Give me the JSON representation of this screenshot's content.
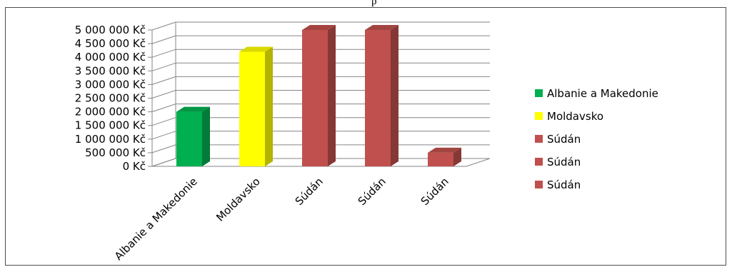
{
  "top_fragment_text": "p",
  "chart_data": {
    "type": "bar",
    "style": "3d-column",
    "categories": [
      "Albanie a Makedonie",
      "Moldavsko",
      "Súdán",
      "Súdán",
      "Súdán"
    ],
    "values": [
      2000000,
      4200000,
      5000000,
      5000000,
      500000
    ],
    "colors": [
      "#00b050",
      "#ffff00",
      "#c0504d",
      "#c0504d",
      "#c0504d"
    ],
    "y_ticks": [
      "0 Kč",
      "500 000 Kč",
      "1 000 000 Kč",
      "1 500 000 Kč",
      "2 000 000 Kč",
      "2 500 000 Kč",
      "3 000 000 Kč",
      "3 500 000 Kč",
      "4 000 000 Kč",
      "4 500 000 Kč",
      "5 000 000 Kč"
    ],
    "ylim": [
      0,
      5000000
    ],
    "grid": true,
    "legend_position": "right",
    "legend": [
      {
        "label": "Albanie a Makedonie",
        "color": "#00b050"
      },
      {
        "label": "Moldavsko",
        "color": "#ffff00"
      },
      {
        "label": "Súdán",
        "color": "#c0504d"
      },
      {
        "label": "Súdán",
        "color": "#c0504d"
      },
      {
        "label": "Súdán",
        "color": "#c0504d"
      }
    ]
  }
}
